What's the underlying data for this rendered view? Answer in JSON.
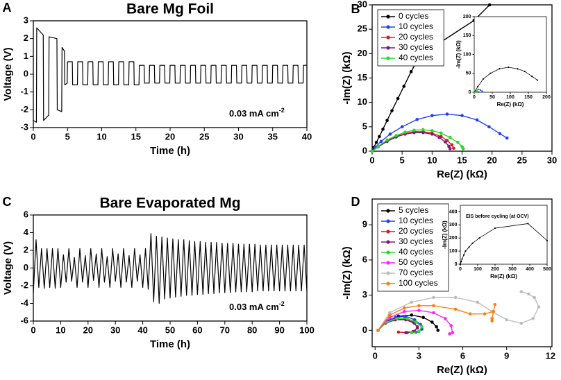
{
  "chart_data": [
    {
      "type": "line",
      "label": "A",
      "title": "Bare Mg Foil",
      "xlabel": "Time (h)",
      "ylabel": "Voltage (V)",
      "annotation": {
        "text": "0.03 mA cm",
        "superscript": "-2"
      },
      "xlim": [
        0,
        40
      ],
      "xticks": [
        0,
        5,
        10,
        15,
        20,
        25,
        30,
        35,
        40
      ],
      "ylim": [
        -3,
        3
      ],
      "yticks": [
        -3,
        -2,
        -1,
        0,
        1,
        2,
        3
      ],
      "color": "#000000",
      "x": [
        0,
        0.45,
        0.5,
        1.45,
        1.5,
        2.25,
        2.3,
        3.45,
        3.5,
        4.15,
        4.2,
        4.55,
        4.6,
        4.95,
        5,
        5.7,
        5.75,
        6.45,
        6.5,
        7.2,
        7.25,
        7.95,
        8,
        8.7,
        8.75,
        9.45,
        9.5,
        10.2,
        10.25,
        10.95,
        11,
        11.7,
        11.75,
        12.45,
        12.5,
        13.2,
        13.25,
        13.95,
        14,
        14.7,
        14.75,
        15.45,
        15.5,
        16.2,
        16.25,
        16.95,
        17,
        17.7,
        17.75,
        18.45,
        18.5,
        19.2,
        19.25,
        19.95,
        20,
        20.7,
        20.75,
        21.45,
        21.5,
        22.2,
        22.25,
        22.95,
        23,
        23.7,
        23.75,
        24.45,
        24.5,
        25.2,
        25.25,
        25.95,
        26,
        26.7,
        26.75,
        27.45,
        27.5,
        28.2,
        28.25,
        28.95,
        29,
        29.7,
        29.75,
        30.45,
        30.5,
        31.2,
        31.25,
        31.95,
        32,
        32.7,
        32.75,
        33.45,
        33.5,
        34.2,
        34.25,
        34.95,
        35,
        35.7,
        35.75,
        36.45,
        36.5,
        37.2,
        37.25,
        37.95,
        38,
        38.7,
        38.75,
        39.45,
        39.5,
        40
      ],
      "values": [
        -2.6,
        -2.7,
        2.6,
        2.2,
        -2.6,
        -2.3,
        2.1,
        2.0,
        -2.0,
        -2.1,
        1.5,
        1.3,
        -0.6,
        -0.5,
        0.7,
        0.7,
        -0.6,
        -0.6,
        0.7,
        0.7,
        -0.6,
        -0.6,
        0.7,
        0.7,
        -0.6,
        -0.6,
        0.7,
        0.7,
        -0.6,
        -0.6,
        0.7,
        0.7,
        -0.6,
        -0.6,
        0.7,
        0.7,
        -0.6,
        -0.6,
        0.7,
        0.7,
        -0.6,
        -0.6,
        0.5,
        0.5,
        -0.5,
        -0.5,
        0.5,
        0.5,
        -0.5,
        -0.5,
        0.5,
        0.5,
        -0.5,
        -0.5,
        0.5,
        0.5,
        -0.5,
        -0.5,
        0.5,
        0.5,
        -0.5,
        -0.5,
        0.5,
        0.5,
        -0.5,
        -0.5,
        0.5,
        0.5,
        -0.5,
        -0.5,
        0.5,
        0.5,
        -0.5,
        -0.5,
        0.5,
        0.5,
        -0.5,
        -0.5,
        0.5,
        0.5,
        -0.5,
        -0.5,
        0.5,
        0.5,
        -0.5,
        -0.5,
        0.5,
        0.5,
        -0.5,
        -0.5,
        0.5,
        0.5,
        -0.5,
        -0.5,
        0.5,
        0.5,
        -0.5,
        -0.5,
        0.5,
        0.5,
        -0.5,
        -0.5,
        0.5,
        0.5,
        -0.5,
        -0.5,
        0.5,
        0.5
      ]
    },
    {
      "type": "line",
      "markers": true,
      "label": "B",
      "xlabel": "Re(Z) (kΩ)",
      "ylabel": "-Im(Z) (kΩ)",
      "xlim": [
        0,
        30
      ],
      "xticks": [
        0,
        5,
        10,
        15,
        20,
        25,
        30
      ],
      "ylim": [
        0,
        30
      ],
      "yticks": [
        0,
        5,
        10,
        15,
        20,
        25,
        30
      ],
      "series": [
        {
          "name": "0 cycles",
          "color": "#000000",
          "x": [
            0,
            0.3,
            0.7,
            1.2,
            1.8,
            2.5,
            3.3,
            4.3,
            5.3,
            6.5,
            8,
            17,
            19.6
          ],
          "values": [
            0,
            0.8,
            1.8,
            3,
            4.5,
            6.3,
            8.3,
            10.8,
            13.3,
            16.3,
            19.6,
            26.8,
            30
          ]
        },
        {
          "name": "10 cycles",
          "color": "#1f3fff",
          "x": [
            0,
            0.5,
            1.5,
            3,
            5,
            7.5,
            10,
            12.5,
            15,
            17.5,
            19.5,
            21.3,
            22.5
          ],
          "values": [
            0,
            0.8,
            2,
            3.5,
            5,
            6.5,
            7.3,
            7.6,
            7.3,
            6.4,
            5,
            3.6,
            2.7
          ]
        },
        {
          "name": "20 cycles",
          "color": "#e8141c",
          "x": [
            0,
            1,
            2.5,
            4,
            5.5,
            7,
            8.5,
            10,
            11.5,
            12.5,
            13.3,
            13.6
          ],
          "values": [
            0,
            1,
            2.2,
            3,
            3.6,
            4,
            4,
            3.7,
            3,
            2.2,
            1.3,
            0.6
          ]
        },
        {
          "name": "30 cycles",
          "color": "#7b1a7b",
          "x": [
            0,
            1,
            2.5,
            4,
            5.5,
            7,
            8.5,
            10,
            11.2,
            12.2,
            12.8,
            13
          ],
          "values": [
            0,
            0.9,
            2,
            2.9,
            3.5,
            3.8,
            3.8,
            3.5,
            2.8,
            1.9,
            1,
            0.5
          ]
        },
        {
          "name": "40 cycles",
          "color": "#22dd22",
          "x": [
            0,
            1,
            2.5,
            4,
            5.5,
            7,
            8.5,
            10,
            11.5,
            13,
            14.3,
            15,
            15.2
          ],
          "values": [
            0,
            1,
            2.3,
            3.2,
            3.9,
            4.3,
            4.4,
            4.2,
            3.7,
            2.8,
            1.8,
            0.9,
            0.5
          ]
        }
      ],
      "inset": {
        "type": "line",
        "markers": true,
        "xlabel": "Re(Z) (kΩ)",
        "ylabel": "-Im(Z) (kΩ)",
        "xlim": [
          0,
          200
        ],
        "xticks": [
          0,
          50,
          100,
          150,
          200
        ],
        "ylim": [
          0,
          200
        ],
        "yticks": [
          0,
          50,
          100,
          150,
          200
        ],
        "series": [
          {
            "color": "#000000",
            "x": [
              0,
              10,
              25,
              45,
              70,
              95,
              120,
              140,
              160,
              175
            ],
            "values": [
              0,
              15,
              35,
              50,
              62,
              66,
              62,
              55,
              42,
              32
            ]
          },
          {
            "color": "#1f3fff",
            "x": [
              0,
              5,
              11,
              17,
              22
            ],
            "values": [
              0,
              4,
              7.6,
              6,
              2.7
            ]
          },
          {
            "color": "#e8141c",
            "x": [
              0,
              7,
              13.6
            ],
            "values": [
              0,
              4,
              0.6
            ]
          },
          {
            "color": "#7b1a7b",
            "x": [
              0,
              7,
              13
            ],
            "values": [
              0,
              3.8,
              0.5
            ]
          },
          {
            "color": "#22dd22",
            "x": [
              0,
              7,
              15.2
            ],
            "values": [
              0,
              4.4,
              0.5
            ]
          }
        ]
      }
    },
    {
      "type": "line",
      "label": "C",
      "title": "Bare Evaporated Mg",
      "xlabel": "Time (h)",
      "ylabel": "Voltage (V)",
      "annotation": {
        "text": "0.03 mA cm",
        "superscript": "-2"
      },
      "xlim": [
        0,
        100
      ],
      "xticks": [
        0,
        10,
        20,
        30,
        40,
        50,
        60,
        70,
        80,
        90,
        100
      ],
      "ylim": [
        -6,
        6
      ],
      "yticks": [
        -6,
        -4,
        -2,
        0,
        2,
        4,
        6
      ],
      "color": "#000000",
      "x": [
        0,
        1,
        2,
        3,
        4,
        5,
        6,
        7,
        8,
        9,
        10,
        11,
        12,
        13,
        14,
        15,
        16,
        17,
        18,
        19,
        20,
        21,
        22,
        23,
        24,
        25,
        26,
        27,
        28,
        29,
        30,
        31,
        32,
        33,
        34,
        35,
        36,
        37,
        38,
        39,
        40,
        41,
        42,
        43,
        44,
        45,
        46,
        47,
        48,
        49,
        50,
        51,
        52,
        53,
        54,
        55,
        56,
        57,
        58,
        59,
        60,
        61,
        62,
        63,
        64,
        65,
        66,
        67,
        68,
        69,
        70,
        71,
        72,
        73,
        74,
        75,
        76,
        77,
        78,
        79,
        80,
        81,
        82,
        83,
        84,
        85,
        86,
        87,
        88,
        89,
        90,
        91,
        92,
        93,
        94,
        95,
        96,
        97,
        98,
        99,
        100
      ],
      "values": [
        -2.8,
        3.2,
        -2.2,
        2.2,
        -2.3,
        2.2,
        -2.2,
        2.2,
        -2.3,
        2.2,
        -2.2,
        1.5,
        -1.6,
        2.2,
        -1.5,
        1.2,
        -2.2,
        2.2,
        -1.6,
        1.4,
        -2.2,
        2.2,
        -1.4,
        1.6,
        -2.2,
        2.2,
        -1.6,
        1.3,
        -2.2,
        2.2,
        -1.5,
        1.6,
        -2.2,
        2.2,
        -1.6,
        1.4,
        -2.2,
        2.2,
        -1.5,
        1.5,
        -2.2,
        2.2,
        -2.4,
        3.9,
        -3.8,
        3.6,
        -4.0,
        3.5,
        -3.5,
        3.4,
        -3.4,
        3.3,
        -3.3,
        3.2,
        -3.2,
        3.2,
        -3.1,
        3.1,
        -3.1,
        3.0,
        -3.0,
        3.0,
        -3.0,
        2.9,
        -2.9,
        2.9,
        -2.9,
        2.9,
        -2.8,
        2.8,
        -2.8,
        2.8,
        -2.8,
        2.8,
        -2.7,
        2.7,
        -2.7,
        2.7,
        -2.7,
        2.7,
        -2.7,
        2.7,
        -2.6,
        2.6,
        -2.6,
        2.6,
        -2.6,
        2.6,
        -2.6,
        2.6,
        -2.6,
        2.6,
        -2.6,
        2.6,
        -2.6,
        2.6,
        -2.6,
        2.6,
        -2.6,
        2.6,
        -2.6
      ]
    },
    {
      "type": "line",
      "markers": true,
      "label": "D",
      "xlabel": "Re(Z) (kΩ)",
      "ylabel": "-Im(Z) (kΩ)",
      "xlim": [
        -0.2,
        12.1
      ],
      "xticks": [
        0,
        3,
        6,
        9,
        12
      ],
      "ylim": [
        -1.4,
        11.2
      ],
      "yticks": [
        0,
        3,
        6,
        9
      ],
      "series": [
        {
          "name": "5 cycles",
          "color": "#000000",
          "x": [
            0.2,
            0.8,
            1.6,
            2.5,
            3.3,
            3.9,
            4.2,
            4.3
          ],
          "values": [
            0,
            0.8,
            1.2,
            1.3,
            1.1,
            0.7,
            0.3,
            0
          ]
        },
        {
          "name": "10 cycles",
          "color": "#1f3fff",
          "x": [
            0.2,
            0.7,
            1.4,
            2.1,
            2.7,
            3.1,
            3.2,
            2.8
          ],
          "values": [
            0,
            0.7,
            1.1,
            1.2,
            0.9,
            0.5,
            0.1,
            -0.15
          ]
        },
        {
          "name": "20 cycles",
          "color": "#e8141c",
          "x": [
            0.2,
            0.7,
            1.3,
            2,
            2.6,
            2.9,
            2.7,
            2.2,
            1.6
          ],
          "values": [
            0,
            0.6,
            0.9,
            1,
            0.7,
            0.3,
            -0.1,
            -0.2,
            -0.15
          ]
        },
        {
          "name": "30 cycles",
          "color": "#7b1a7b",
          "x": [
            0.2,
            0.7,
            1.4,
            2.1,
            2.7,
            2.9,
            2.6,
            2.1
          ],
          "values": [
            0,
            0.6,
            0.9,
            0.9,
            0.6,
            0.2,
            -0.1,
            -0.2
          ]
        },
        {
          "name": "40 cycles",
          "color": "#22dd22",
          "x": [
            0.2,
            0.8,
            1.5,
            2.2,
            2.8,
            3.2,
            3,
            2.5
          ],
          "values": [
            0,
            0.7,
            1,
            1,
            0.7,
            0.3,
            -0.1,
            -0.2
          ]
        },
        {
          "name": "50 cycles",
          "color": "#ff22ff",
          "x": [
            0.2,
            1,
            2,
            3,
            4,
            4.8,
            5.2,
            5.3,
            5.1
          ],
          "values": [
            0,
            1.1,
            1.6,
            1.7,
            1.5,
            1,
            0.4,
            -0.2,
            -0.3
          ]
        },
        {
          "name": "70 cycles",
          "color": "#bdbdbd",
          "x": [
            0.2,
            1,
            2.5,
            4,
            5.5,
            7,
            8,
            9,
            10,
            10.8,
            11.2,
            10.9,
            10.5,
            10
          ],
          "values": [
            0,
            1.5,
            2.4,
            2.8,
            2.8,
            2.4,
            1.6,
            0.9,
            0.6,
            1,
            2,
            2.8,
            3.1,
            3.3
          ]
        },
        {
          "name": "100 cycles",
          "color": "#ff7f0e",
          "x": [
            0.2,
            1,
            2,
            3,
            4,
            5.5,
            6.5,
            7.5,
            8.1,
            8.2,
            8,
            8
          ],
          "values": [
            0,
            1.3,
            1.9,
            2.1,
            2.1,
            1.8,
            1.4,
            1.4,
            1.6,
            2.2,
            1,
            0.8
          ]
        }
      ],
      "inset": {
        "type": "line",
        "markers": true,
        "title": "EIS before cycling (at OCV)",
        "xlabel": "Re(Z) (kΩ)",
        "ylabel": "-Im(Z) (kΩ)",
        "xlim": [
          0,
          500
        ],
        "xticks": [
          0,
          100,
          200,
          300,
          400,
          500
        ],
        "ylim": [
          0,
          450
        ],
        "yticks": [
          0,
          100,
          200,
          300,
          400
        ],
        "series": [
          {
            "color": "#000000",
            "x": [
              0,
              5,
              10,
              20,
              30,
              50,
              70,
              110,
              200,
              390,
              500
            ],
            "values": [
              0,
              20,
              40,
              70,
              100,
              130,
              160,
              200,
              275,
              310,
              180
            ]
          }
        ]
      }
    }
  ]
}
